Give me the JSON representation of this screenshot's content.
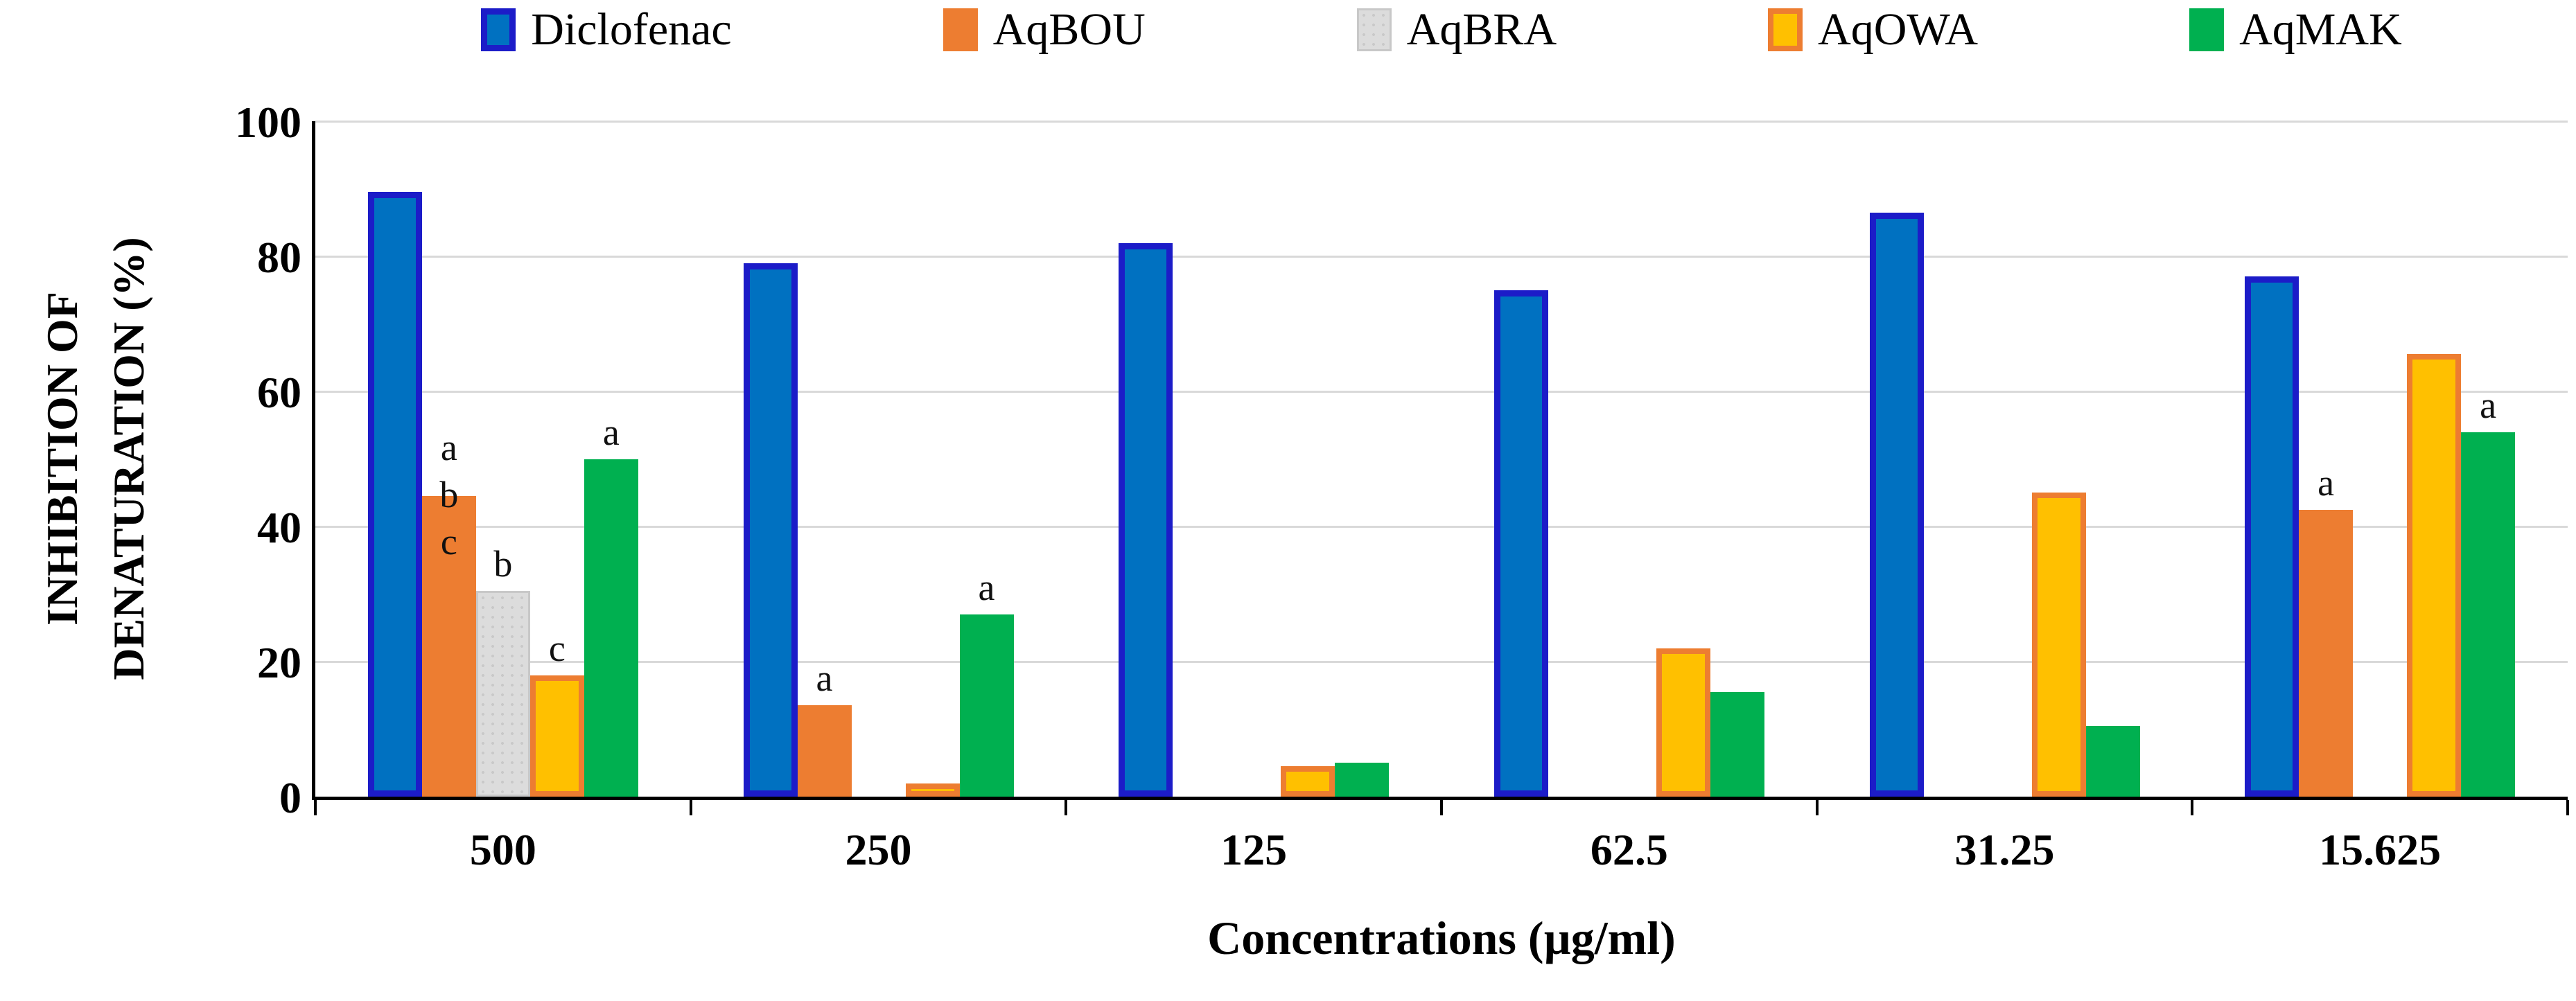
{
  "chart_data": {
    "type": "bar",
    "title": "",
    "xlabel": "Concentrations (µg/ml)",
    "ylabel": "INHIBITION OF DENATURATION (%)",
    "ylabel_lines": [
      "INHIBITION OF",
      "DENATURATION (%)"
    ],
    "ylim": [
      0,
      100
    ],
    "yticks": [
      0,
      20,
      40,
      60,
      80,
      100
    ],
    "grid": "horizontal",
    "legend_position": "top",
    "categories": [
      "500",
      "250",
      "125",
      "62.5",
      "31.25",
      "15.625"
    ],
    "series": [
      {
        "name": "Diclofenac",
        "fill": "#0071C1",
        "border": "#1C1CC8",
        "border_width": 9,
        "pattern": false,
        "values": [
          89.5,
          79,
          82,
          75,
          86.5,
          77
        ]
      },
      {
        "name": "AqBOU",
        "fill": "#ED7D31",
        "border": "#ED7D31",
        "border_width": 0,
        "pattern": false,
        "values": [
          44.5,
          13.5,
          0,
          0,
          0,
          42.5
        ]
      },
      {
        "name": "AqBRA",
        "fill": "#DCDCDC",
        "border": "#C8C8C8",
        "border_width": 3,
        "pattern": true,
        "values": [
          30.5,
          0,
          0,
          0,
          0,
          0
        ]
      },
      {
        "name": "AqOWA",
        "fill": "#FFC000",
        "border": "#ED7D31",
        "border_width": 8,
        "pattern": false,
        "values": [
          18,
          2,
          4.5,
          22,
          45,
          65.5
        ]
      },
      {
        "name": "AqMAK",
        "fill": "#00B050",
        "border": "#00B050",
        "border_width": 0,
        "pattern": false,
        "values": [
          50,
          27,
          5,
          15.5,
          10.5,
          54
        ]
      }
    ],
    "significance_letters": {
      "500": {
        "AqBOU": [
          "a",
          "b",
          "c"
        ],
        "AqBRA": [
          "b"
        ],
        "AqOWA": [
          "c"
        ],
        "AqMAK": [
          "a"
        ]
      },
      "250": {
        "AqBOU": [
          "a"
        ],
        "AqMAK": [
          "a"
        ]
      },
      "15.625": {
        "AqBOU": [
          "a"
        ],
        "AqMAK": [
          "a"
        ]
      }
    },
    "colors": {
      "gridline": "#d9d9d9",
      "axis": "#000000",
      "background": "#ffffff"
    }
  }
}
